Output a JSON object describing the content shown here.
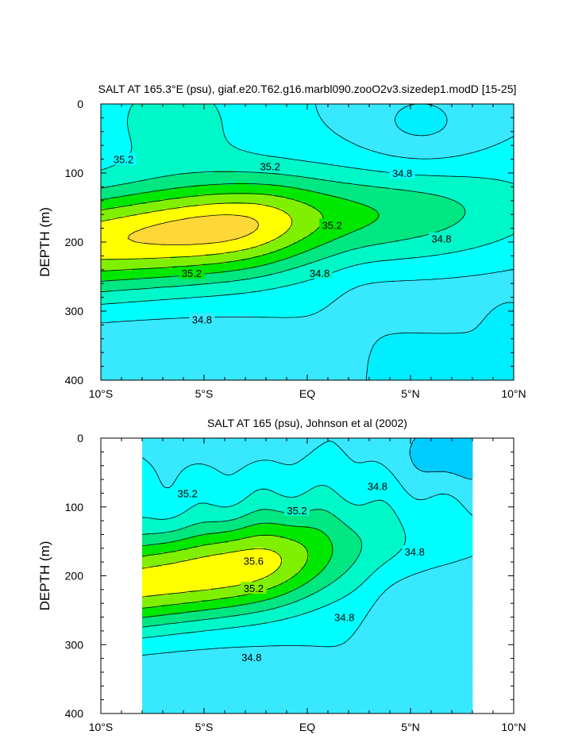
{
  "chart_data": [
    {
      "type": "contour",
      "title": "SALT AT 165.3°E (psu), giaf.e20.T62.g16.marbl090.zooO2v3.sizedep1.modD [15-25]",
      "ylabel": "DEPTH (m)",
      "xlim": [
        -10,
        10
      ],
      "ylim": [
        0,
        400
      ],
      "yinverted": true,
      "x_ticks": [
        {
          "v": -10,
          "label": "10°S"
        },
        {
          "v": -5,
          "label": "5°S"
        },
        {
          "v": 0,
          "label": "EQ"
        },
        {
          "v": 5,
          "label": "5°N"
        },
        {
          "v": 10,
          "label": "10°N"
        }
      ],
      "y_ticks": [
        {
          "v": 0,
          "label": "0"
        },
        {
          "v": 100,
          "label": "100"
        },
        {
          "v": 200,
          "label": "200"
        },
        {
          "v": 300,
          "label": "300"
        },
        {
          "v": 400,
          "label": "400"
        }
      ],
      "data_extent_x": [
        -10,
        10
      ],
      "levels": [
        34.4,
        34.6,
        34.8,
        35.0,
        35.2,
        35.4,
        35.6,
        35.8
      ],
      "fill_colors": [
        "#00eeff",
        "#37e8ff",
        "#00ffff",
        "#00f7c8",
        "#00e680",
        "#00e800",
        "#80f000",
        "#ffff00",
        "#ffd736"
      ],
      "contour_labels": [
        {
          "text": "35.2",
          "x": -8.9,
          "y": 80
        },
        {
          "text": "35.2",
          "x": -1.8,
          "y": 90
        },
        {
          "text": "34.8",
          "x": 4.6,
          "y": 100
        },
        {
          "text": "35.2",
          "x": 1.2,
          "y": 175
        },
        {
          "text": "34.8",
          "x": 6.5,
          "y": 195
        },
        {
          "text": "35.2",
          "x": -5.6,
          "y": 245
        },
        {
          "text": "34.8",
          "x": 0.6,
          "y": 245
        },
        {
          "text": "34.8",
          "x": -5.1,
          "y": 312
        }
      ]
    },
    {
      "type": "contour",
      "title": "SALT AT 165 (psu), Johnson et al (2002)",
      "ylabel": "DEPTH (m)",
      "xlim": [
        -10,
        10
      ],
      "ylim": [
        0,
        400
      ],
      "yinverted": true,
      "x_ticks": [
        {
          "v": -10,
          "label": "10°S"
        },
        {
          "v": -5,
          "label": "5°S"
        },
        {
          "v": 0,
          "label": "EQ"
        },
        {
          "v": 5,
          "label": "5°N"
        },
        {
          "v": 10,
          "label": "10°N"
        }
      ],
      "y_ticks": [
        {
          "v": 0,
          "label": "0"
        },
        {
          "v": 100,
          "label": "100"
        },
        {
          "v": 200,
          "label": "200"
        },
        {
          "v": 300,
          "label": "300"
        },
        {
          "v": 400,
          "label": "400"
        }
      ],
      "data_extent_x": [
        -8,
        8
      ],
      "levels": [
        34.4,
        34.6,
        34.8,
        35.0,
        35.2,
        35.4,
        35.6,
        35.8
      ],
      "fill_colors": [
        "#00ccff",
        "#37e8ff",
        "#00ffff",
        "#00f7c8",
        "#00e680",
        "#00e800",
        "#80f000",
        "#ffff00",
        "#ffd736"
      ],
      "contour_labels": [
        {
          "text": "34.8",
          "x": 3.4,
          "y": 70
        },
        {
          "text": "35.2",
          "x": -5.8,
          "y": 80
        },
        {
          "text": "35.2",
          "x": -0.5,
          "y": 105
        },
        {
          "text": "34.8",
          "x": 5.2,
          "y": 165
        },
        {
          "text": "35.6",
          "x": -2.6,
          "y": 178
        },
        {
          "text": "35.2",
          "x": -2.6,
          "y": 218
        },
        {
          "text": "34.8",
          "x": 1.8,
          "y": 260
        },
        {
          "text": "34.8",
          "x": -2.7,
          "y": 318
        }
      ]
    }
  ]
}
